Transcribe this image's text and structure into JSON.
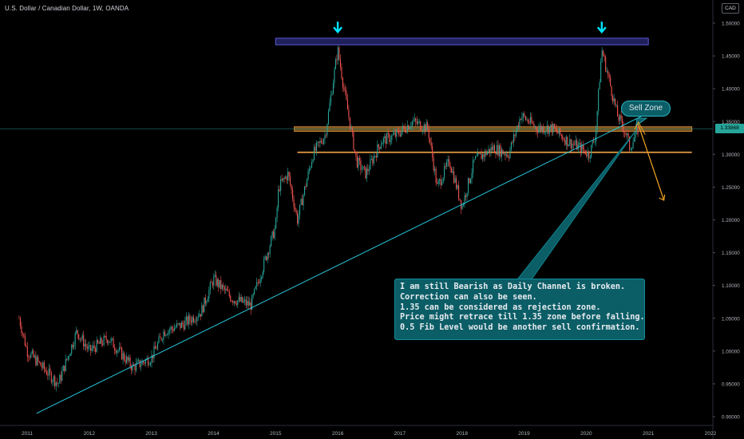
{
  "header": {
    "symbol_title": "U.S. Dollar / Canadian Dollar, 1W, OANDA",
    "currency_badge": "CAD"
  },
  "colors": {
    "background": "#000000",
    "up_candle": "#26a69a",
    "down_candle": "#ef5350",
    "trendline": "#26c6da",
    "zone_line": "#c98a3a",
    "top_zone": "#2a2a7a",
    "projection": "#f5a623",
    "annotation_bg": "#0b5d66",
    "arrow": "#00e5ff"
  },
  "chart_data": {
    "type": "candlestick",
    "title": "U.S. Dollar / Canadian Dollar, 1W, OANDA",
    "xlabel": "",
    "ylabel": "",
    "x_ticks": [
      "2011",
      "2012",
      "2013",
      "2014",
      "2015",
      "2016",
      "2017",
      "2018",
      "2019",
      "2020",
      "2021",
      "2022"
    ],
    "y_ticks": [
      "1.50000",
      "1.45000",
      "1.40000",
      "1.35000",
      "1.30000",
      "1.25000",
      "1.20000",
      "1.15000",
      "1.10000",
      "1.05000",
      "1.00000",
      "0.95000",
      "0.90000"
    ],
    "ylim": [
      0.9,
      1.5
    ],
    "xlim": [
      2011.0,
      2022.0
    ],
    "last_price": "1.33868",
    "price_path": [
      [
        2010.87,
        1.05
      ],
      [
        2011.0,
        1.0
      ],
      [
        2011.2,
        0.98
      ],
      [
        2011.5,
        0.95
      ],
      [
        2011.8,
        1.03
      ],
      [
        2012.0,
        1.0
      ],
      [
        2012.3,
        1.02
      ],
      [
        2012.7,
        0.975
      ],
      [
        2013.0,
        0.99
      ],
      [
        2013.2,
        1.03
      ],
      [
        2013.5,
        1.04
      ],
      [
        2013.8,
        1.06
      ],
      [
        2014.0,
        1.11
      ],
      [
        2014.3,
        1.08
      ],
      [
        2014.6,
        1.07
      ],
      [
        2014.9,
        1.16
      ],
      [
        2015.0,
        1.19
      ],
      [
        2015.05,
        1.25
      ],
      [
        2015.2,
        1.27
      ],
      [
        2015.35,
        1.2
      ],
      [
        2015.6,
        1.3
      ],
      [
        2015.8,
        1.33
      ],
      [
        2016.0,
        1.46
      ],
      [
        2016.1,
        1.4
      ],
      [
        2016.3,
        1.29
      ],
      [
        2016.45,
        1.27
      ],
      [
        2016.7,
        1.32
      ],
      [
        2016.95,
        1.33
      ],
      [
        2017.2,
        1.35
      ],
      [
        2017.45,
        1.34
      ],
      [
        2017.6,
        1.25
      ],
      [
        2017.8,
        1.29
      ],
      [
        2018.0,
        1.22
      ],
      [
        2018.2,
        1.29
      ],
      [
        2018.5,
        1.31
      ],
      [
        2018.75,
        1.3
      ],
      [
        2018.95,
        1.36
      ],
      [
        2019.2,
        1.34
      ],
      [
        2019.45,
        1.34
      ],
      [
        2019.7,
        1.32
      ],
      [
        2019.9,
        1.31
      ],
      [
        2020.05,
        1.3
      ],
      [
        2020.15,
        1.33
      ],
      [
        2020.25,
        1.46
      ],
      [
        2020.35,
        1.42
      ],
      [
        2020.5,
        1.36
      ],
      [
        2020.65,
        1.33
      ],
      [
        2020.7,
        1.31
      ],
      [
        2020.8,
        1.33
      ],
      [
        2020.84,
        1.339
      ]
    ],
    "annotations": {
      "top_zone": {
        "y_range": [
          1.467,
          1.477
        ],
        "x_range": [
          2015.0,
          2021.0
        ]
      },
      "resistance_zone": {
        "y_range": [
          1.335,
          1.342
        ],
        "x_range": [
          2015.3,
          2021.7
        ]
      },
      "support_line": {
        "y": 1.303,
        "x_range": [
          2015.35,
          2021.7
        ]
      },
      "trendline": {
        "from": [
          2011.15,
          0.905
        ],
        "to": [
          2021.32,
          1.378
        ]
      },
      "current_price_line": {
        "y": 1.339
      },
      "arrows_down": [
        {
          "x": 2016.0,
          "y": 1.495
        },
        {
          "x": 2020.25,
          "y": 1.495
        }
      ],
      "projection": {
        "from": [
          2020.84,
          1.345
        ],
        "to": [
          2021.25,
          1.23
        ]
      },
      "callout_pointer_to": [
        2020.78,
        1.334
      ]
    }
  },
  "annotation": {
    "lines": [
      "I am still Bearish as Daily Channel is broken.",
      "Correction can also be seen.",
      "1.35 can be considered as rejection zone.",
      "Price might retrace till 1.35 zone before falling.",
      "0.5 Fib Level would be another sell confirmation."
    ]
  },
  "sell_zone_label": "Sell Zone"
}
